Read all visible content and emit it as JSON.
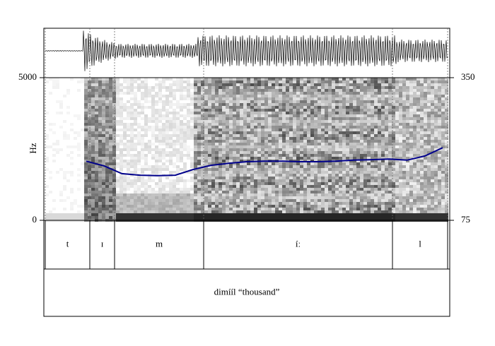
{
  "chart_data": {
    "type": "line",
    "ylabel": "Hz",
    "ylim": [
      0,
      5000
    ],
    "yticks": [
      0,
      5000
    ],
    "y2lim": [
      75,
      350
    ],
    "y2ticks": [
      75,
      350
    ],
    "series": [
      {
        "name": null,
        "color": "#00008b",
        "axis": "y2",
        "values": [
          189,
          180,
          165,
          162,
          161,
          162,
          173,
          181,
          185,
          188,
          189,
          189,
          188,
          188,
          189,
          191,
          192,
          193,
          191,
          199,
          215
        ]
      }
    ],
    "segments": [
      "t",
      "ɪ",
      "m",
      "íː",
      "l"
    ],
    "word": "dimííl “thousand”"
  }
}
